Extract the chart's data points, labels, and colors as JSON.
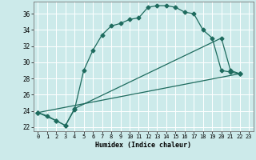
{
  "xlabel": "Humidex (Indice chaleur)",
  "bg_color": "#cceaea",
  "grid_color": "#ffffff",
  "line_color": "#1e6b5e",
  "xlim": [
    -0.5,
    23.5
  ],
  "ylim": [
    21.5,
    37.5
  ],
  "yticks": [
    22,
    24,
    26,
    28,
    30,
    32,
    34,
    36
  ],
  "xticks": [
    0,
    1,
    2,
    3,
    4,
    5,
    6,
    7,
    8,
    9,
    10,
    11,
    12,
    13,
    14,
    15,
    16,
    17,
    18,
    19,
    20,
    21,
    22,
    23
  ],
  "line1_x": [
    0,
    1,
    2,
    3,
    4,
    5,
    6,
    7,
    8,
    9,
    10,
    11,
    12,
    13,
    14,
    15,
    16,
    17,
    18,
    19,
    20,
    21,
    22
  ],
  "line1_y": [
    23.8,
    23.4,
    22.8,
    22.2,
    24.2,
    29.0,
    31.5,
    33.4,
    34.5,
    34.8,
    35.3,
    35.5,
    36.8,
    37.0,
    37.0,
    36.8,
    36.2,
    36.0,
    34.0,
    33.0,
    29.0,
    28.8,
    28.6
  ],
  "line2_x": [
    0,
    2,
    3,
    4,
    20,
    21,
    22
  ],
  "line2_y": [
    23.8,
    22.8,
    22.2,
    24.3,
    33.0,
    29.0,
    28.6
  ],
  "line3_x": [
    0,
    22
  ],
  "line3_y": [
    23.8,
    28.6
  ]
}
